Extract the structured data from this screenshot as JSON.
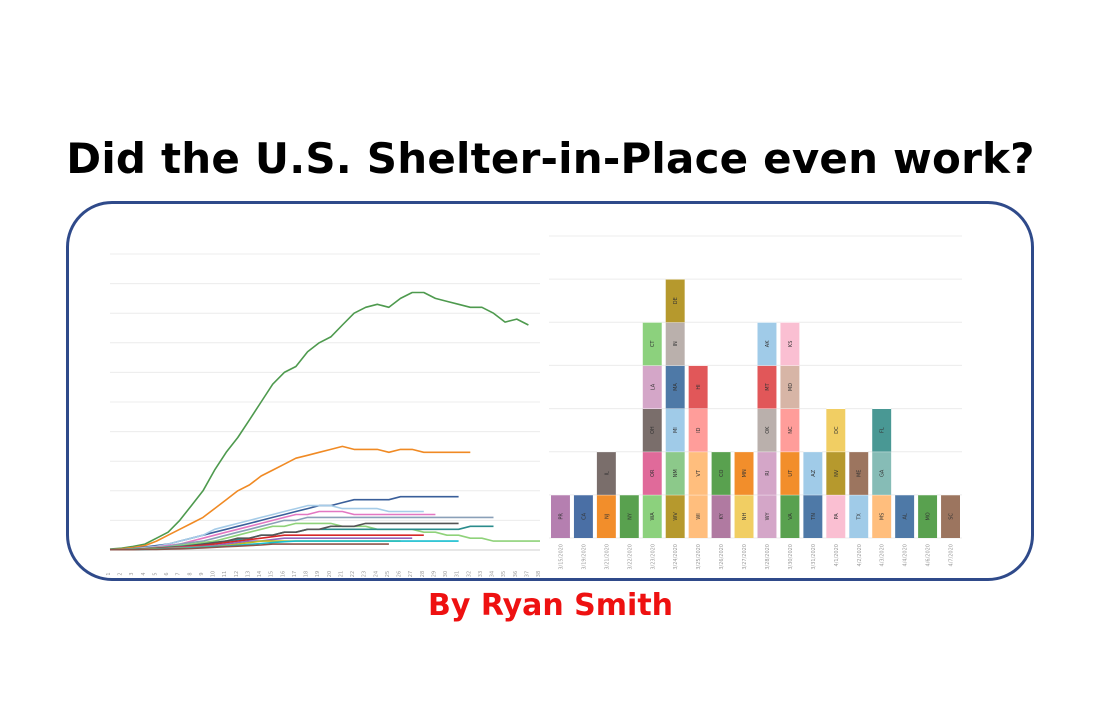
{
  "title": "Did the U.S. Shelter-in-Place even work?",
  "author": "By Ryan Smith",
  "colors": {
    "frame": "#2f4a8a",
    "author": "#ee1111"
  },
  "chart_data": [
    {
      "type": "line",
      "x": [
        1,
        2,
        3,
        4,
        5,
        6,
        7,
        8,
        9,
        10,
        11,
        12,
        13,
        14,
        15,
        16,
        17,
        18,
        19,
        20,
        21,
        22,
        23,
        24,
        25,
        26,
        27,
        28,
        29,
        30,
        31,
        32,
        33,
        34,
        35,
        36,
        37,
        38
      ],
      "ylim": [
        0,
        100
      ],
      "grid": true,
      "series": [
        {
          "color": "#4e9a4e",
          "values": [
            0.3,
            0.6,
            1.2,
            2,
            4,
            6,
            10,
            15,
            20,
            27,
            33,
            38,
            44,
            50,
            56,
            60,
            62,
            67,
            70,
            72,
            76,
            80,
            82,
            83,
            82,
            85,
            87,
            87,
            85,
            84,
            83,
            82,
            82,
            80,
            77,
            78,
            76,
            null
          ]
        },
        {
          "color": "#f08a24",
          "values": [
            0.2,
            0.4,
            0.8,
            1.5,
            3,
            5,
            7,
            9,
            11,
            14,
            17,
            20,
            22,
            25,
            27,
            29,
            31,
            32,
            33,
            34,
            35,
            34,
            34,
            34,
            33,
            34,
            34,
            33,
            33,
            33,
            33,
            33,
            null,
            null,
            null,
            null,
            null,
            null
          ]
        },
        {
          "color": "#3a5f9a",
          "values": [
            0.1,
            0.2,
            0.5,
            1,
            1.5,
            2,
            3,
            4,
            5,
            6,
            7,
            8,
            9,
            10,
            11,
            12,
            13,
            14,
            15,
            15,
            16,
            17,
            17,
            17,
            17,
            18,
            18,
            18,
            18,
            18,
            18,
            null,
            null,
            null,
            null,
            null,
            null,
            null
          ]
        },
        {
          "color": "#a6cce8",
          "values": [
            0.1,
            0.2,
            0.4,
            0.8,
            1.2,
            2,
            3,
            4,
            5,
            7,
            8,
            9,
            10,
            11,
            12,
            13,
            14,
            15,
            15,
            15,
            14,
            14,
            14,
            14,
            13,
            13,
            13,
            13,
            null,
            null,
            null,
            null,
            null,
            null,
            null,
            null,
            null,
            null
          ]
        },
        {
          "color": "#e377c2",
          "values": [
            0.1,
            0.2,
            0.3,
            0.6,
            1,
            1.5,
            2,
            3,
            4,
            5,
            6,
            7,
            8,
            9,
            10,
            11,
            12,
            12,
            13,
            13,
            13,
            12,
            12,
            12,
            12,
            12,
            12,
            12,
            12,
            null,
            null,
            null,
            null,
            null,
            null,
            null,
            null,
            null
          ]
        },
        {
          "color": "#8aa0b8",
          "values": [
            0.1,
            0.2,
            0.3,
            0.5,
            0.8,
            1.2,
            2,
            2.5,
            3,
            4,
            5,
            6,
            7,
            8,
            9,
            10,
            10,
            11,
            11,
            11,
            11,
            11,
            11,
            11,
            11,
            11,
            11,
            11,
            11,
            11,
            11,
            11,
            11,
            11,
            null,
            null,
            null,
            null
          ]
        },
        {
          "color": "#8fd27a",
          "values": [
            0.1,
            0.2,
            0.3,
            0.5,
            0.8,
            1,
            1.5,
            2,
            2.5,
            3,
            4,
            5,
            6,
            7,
            8,
            8,
            9,
            9,
            9,
            9,
            8,
            8,
            8,
            7,
            7,
            7,
            7,
            6,
            6,
            5,
            5,
            4,
            4,
            3,
            3,
            3,
            3,
            3
          ]
        },
        {
          "color": "#2b8c8c",
          "values": [
            0.1,
            0.2,
            0.3,
            0.4,
            0.6,
            0.9,
            1.2,
            1.6,
            2,
            2.5,
            3,
            3.5,
            4,
            5,
            5,
            6,
            6,
            7,
            7,
            7,
            7,
            7,
            7,
            7,
            7,
            7,
            7,
            7,
            7,
            7,
            7,
            8,
            8,
            8,
            null,
            null,
            null,
            null
          ]
        },
        {
          "color": "#555555",
          "values": [
            0.1,
            0.1,
            0.2,
            0.4,
            0.6,
            0.8,
            1,
            1.5,
            2,
            2.5,
            3,
            4,
            4,
            5,
            5,
            6,
            6,
            7,
            7,
            8,
            8,
            8,
            9,
            9,
            9,
            9,
            9,
            9,
            9,
            9,
            9,
            null,
            null,
            null,
            null,
            null,
            null,
            null
          ]
        },
        {
          "color": "#d62728",
          "values": [
            0.1,
            0.1,
            0.2,
            0.3,
            0.5,
            0.7,
            1,
            1.3,
            1.6,
            2,
            2.5,
            3,
            3.5,
            4,
            4.5,
            5,
            5,
            5,
            5,
            5,
            5,
            5,
            5,
            5,
            5,
            5,
            5,
            5,
            null,
            null,
            null,
            null,
            null,
            null,
            null,
            null,
            null,
            null
          ]
        },
        {
          "color": "#9467bd",
          "values": [
            0.1,
            0.1,
            0.2,
            0.3,
            0.4,
            0.6,
            0.8,
            1,
            1.2,
            1.5,
            2,
            2.5,
            3,
            3,
            3.5,
            4,
            4,
            4,
            4,
            4,
            4,
            4,
            4,
            4,
            4,
            4,
            4,
            null,
            null,
            null,
            null,
            null,
            null,
            null,
            null,
            null,
            null,
            null
          ]
        },
        {
          "color": "#bcbd22",
          "values": [
            0.1,
            0.1,
            0.2,
            0.3,
            0.4,
            0.5,
            0.6,
            0.8,
            1,
            1.2,
            1.5,
            2,
            2.5,
            3,
            3,
            3,
            3,
            3,
            3,
            3,
            3,
            3,
            3,
            3,
            3,
            3,
            null,
            null,
            null,
            null,
            null,
            null,
            null,
            null,
            null,
            null,
            null,
            null
          ]
        },
        {
          "color": "#17becf",
          "values": [
            0.1,
            0.1,
            0.1,
            0.2,
            0.3,
            0.4,
            0.5,
            0.7,
            0.9,
            1.1,
            1.3,
            1.6,
            1.9,
            2.2,
            2.5,
            2.8,
            3,
            3,
            3,
            3,
            3,
            3,
            3,
            3,
            3,
            3,
            3,
            3,
            3,
            3,
            3,
            null,
            null,
            null,
            null,
            null,
            null,
            null
          ]
        },
        {
          "color": "#8c564b",
          "values": [
            0.1,
            0.1,
            0.1,
            0.2,
            0.2,
            0.3,
            0.4,
            0.5,
            0.7,
            0.9,
            1.1,
            1.3,
            1.5,
            1.7,
            2,
            2,
            2,
            2,
            2,
            2,
            2,
            2,
            2,
            2,
            2,
            null,
            null,
            null,
            null,
            null,
            null,
            null,
            null,
            null,
            null,
            null,
            null,
            null
          ]
        }
      ]
    },
    {
      "type": "bar",
      "stacked": true,
      "grid": true,
      "ylim": [
        0,
        7
      ],
      "categories": [
        "3/15/2020",
        "3/19/2020",
        "3/21/2020",
        "3/22/2020",
        "3/23/2020",
        "3/24/2020",
        "3/25/2020",
        "3/26/2020",
        "3/27/2020",
        "3/28/2020",
        "3/30/2020",
        "3/31/2020",
        "4/1/2020",
        "4/2/2020",
        "4/3/2020",
        "4/4/2020",
        "4/6/2020",
        "4/7/2020"
      ],
      "stacks": [
        [
          {
            "label": "PR",
            "color": "#b57fb0"
          }
        ],
        [
          {
            "label": "CA",
            "color": "#4a6fa5"
          }
        ],
        [
          {
            "label": "NJ",
            "color": "#f28e2b"
          },
          {
            "label": "IL",
            "color": "#7a6e6b"
          }
        ],
        [
          {
            "label": "NY",
            "color": "#59a14f"
          }
        ],
        [
          {
            "label": "WA",
            "color": "#8cd17d"
          },
          {
            "label": "OR",
            "color": "#e06a9a"
          },
          {
            "label": "OH",
            "color": "#7a6e6b"
          },
          {
            "label": "LA",
            "color": "#d4a6c8"
          },
          {
            "label": "CT",
            "color": "#8cd17d"
          }
        ],
        [
          {
            "label": "WV",
            "color": "#b6992d"
          },
          {
            "label": "NM",
            "color": "#8cc98a"
          },
          {
            "label": "MI",
            "color": "#a0cbe8"
          },
          {
            "label": "MA",
            "color": "#4e79a7"
          },
          {
            "label": "IN",
            "color": "#bab0ac"
          },
          {
            "label": "DE",
            "color": "#b6992d"
          }
        ],
        [
          {
            "label": "WI",
            "color": "#ffbe7d"
          },
          {
            "label": "VT",
            "color": "#ffbe7d"
          },
          {
            "label": "ID",
            "color": "#ff9d9a"
          },
          {
            "label": "HI",
            "color": "#e15759"
          }
        ],
        [
          {
            "label": "KY",
            "color": "#b07aa1"
          },
          {
            "label": "CO",
            "color": "#59a14f"
          }
        ],
        [
          {
            "label": "NH",
            "color": "#f1ce63"
          },
          {
            "label": "MN",
            "color": "#f28e2b"
          }
        ],
        [
          {
            "label": "WY",
            "color": "#d4a6c8"
          },
          {
            "label": "RI",
            "color": "#d4a6c8"
          },
          {
            "label": "OK",
            "color": "#bab0ac"
          },
          {
            "label": "MT",
            "color": "#e15759"
          },
          {
            "label": "AK",
            "color": "#a0cbe8"
          }
        ],
        [
          {
            "label": "VA",
            "color": "#59a14f"
          },
          {
            "label": "UT",
            "color": "#f28e2b"
          },
          {
            "label": "NC",
            "color": "#ff9d9a"
          },
          {
            "label": "MD",
            "color": "#d7b5a6"
          },
          {
            "label": "KS",
            "color": "#fabfd2"
          }
        ],
        [
          {
            "label": "TN",
            "color": "#4e79a7"
          },
          {
            "label": "AZ",
            "color": "#a0cbe8"
          }
        ],
        [
          {
            "label": "PA",
            "color": "#fabfd2"
          },
          {
            "label": "NV",
            "color": "#b6992d"
          },
          {
            "label": "DC",
            "color": "#f1ce63"
          }
        ],
        [
          {
            "label": "TX",
            "color": "#a0cbe8"
          },
          {
            "label": "ME",
            "color": "#9c755f"
          }
        ],
        [
          {
            "label": "MS",
            "color": "#ffbe7d"
          },
          {
            "label": "GA",
            "color": "#86bcb6"
          },
          {
            "label": "FL",
            "color": "#499894"
          }
        ],
        [
          {
            "label": "AL",
            "color": "#4e79a7"
          }
        ],
        [
          {
            "label": "MO",
            "color": "#59a14f"
          }
        ],
        [
          {
            "label": "SC",
            "color": "#9c755f"
          }
        ]
      ]
    }
  ]
}
